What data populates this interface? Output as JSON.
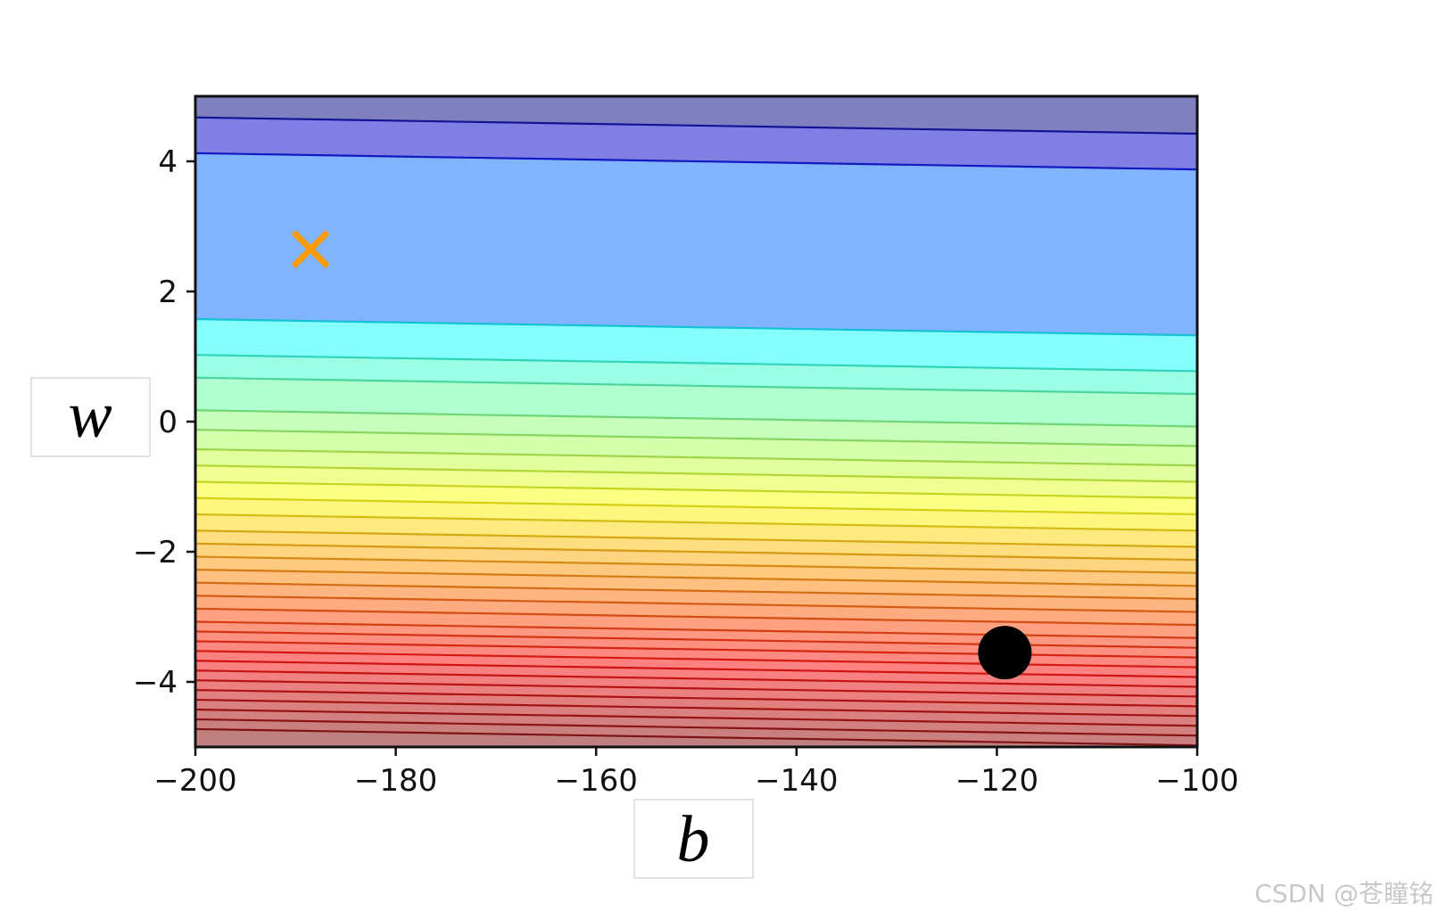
{
  "chart_data": {
    "type": "contour",
    "xlabel": "b",
    "ylabel": "w",
    "xlim": [
      -200,
      -100
    ],
    "ylim": [
      -5,
      5
    ],
    "x_ticks": [
      -200,
      -180,
      -160,
      -140,
      -120,
      -100
    ],
    "y_ticks": [
      -4,
      -2,
      0,
      2,
      4
    ],
    "x_tick_labels": [
      "−200",
      "−180",
      "−160",
      "−140",
      "−120",
      "−100"
    ],
    "y_tick_labels": [
      "−4",
      "−2",
      "0",
      "2",
      "4"
    ],
    "colormap": "jet",
    "level_line_color": "#2020c8",
    "contour_levels_w": [
      4.55,
      4.0,
      1.45,
      0.9,
      0.55,
      0.05,
      -0.25,
      -0.55,
      -0.8,
      -1.05,
      -1.3,
      -1.55,
      -1.8,
      -2.0,
      -2.2,
      -2.4,
      -2.6,
      -2.8,
      -3.0,
      -3.2,
      -3.35,
      -3.5,
      -3.65,
      -3.8,
      -3.95,
      -4.1,
      -4.25,
      -4.4,
      -4.55,
      -4.7,
      -4.85
    ],
    "contour_slope_w_per_b": -0.0025,
    "markers": [
      {
        "type": "x",
        "b": -188.5,
        "w": 2.65,
        "color": "#ff9a00"
      },
      {
        "type": "circle",
        "b": -119.2,
        "w": -3.55,
        "color": "#000000"
      }
    ],
    "grid": false
  },
  "watermark": "CSDN @苍瞳铭"
}
